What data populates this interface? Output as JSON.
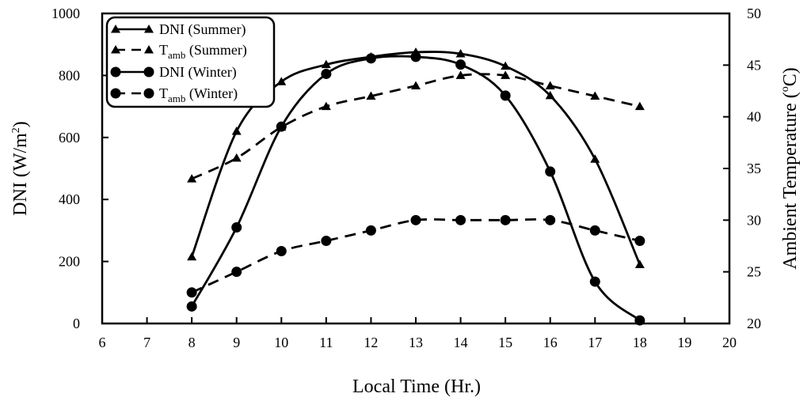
{
  "chart_data": {
    "type": "line",
    "xlabel": "Local Time (Hr.)",
    "ylabel_left": "DNI (W/m",
    "ylabel_left_sup": "2",
    "ylabel_left_close": ")",
    "ylabel_right": "Ambient Temperature (",
    "ylabel_right_degree": "o",
    "ylabel_right_unit": "C)",
    "xlim": [
      6,
      20
    ],
    "ylim_left": [
      0,
      1000
    ],
    "ylim_right": [
      20,
      50
    ],
    "x_ticks": [
      6,
      7,
      8,
      9,
      10,
      11,
      12,
      13,
      14,
      15,
      16,
      17,
      18,
      19,
      20
    ],
    "y_left_ticks": [
      0,
      200,
      400,
      600,
      800,
      1000
    ],
    "y_right_ticks": [
      20,
      25,
      30,
      35,
      40,
      45,
      50
    ],
    "grid": false,
    "legend_position": "top-left",
    "series": [
      {
        "name": "DNI (Summer)",
        "legend_main": "DNI (Summer)",
        "legend_sub": "",
        "legend_tail": "",
        "axis": "left",
        "marker": "triangle",
        "dash": "solid",
        "x": [
          8,
          9,
          10,
          11,
          12,
          13,
          14,
          15,
          16,
          17,
          18
        ],
        "values": [
          215,
          620,
          780,
          835,
          860,
          875,
          870,
          830,
          735,
          530,
          190
        ]
      },
      {
        "name": "Tamb (Summer)",
        "legend_main": "T",
        "legend_sub": "amb",
        "legend_tail": " (Summer)",
        "axis": "right",
        "marker": "triangle",
        "dash": "dashed",
        "x": [
          8,
          9,
          10,
          11,
          12,
          13,
          14,
          15,
          16,
          17,
          18
        ],
        "values": [
          34,
          36,
          39,
          41,
          42,
          43,
          44,
          44,
          43,
          42,
          41
        ]
      },
      {
        "name": "DNI (Winter)",
        "legend_main": "DNI (Winter)",
        "legend_sub": "",
        "legend_tail": "",
        "axis": "left",
        "marker": "circle",
        "dash": "solid",
        "x": [
          8,
          9,
          10,
          11,
          12,
          13,
          14,
          15,
          16,
          17,
          18
        ],
        "values": [
          55,
          310,
          635,
          805,
          855,
          860,
          835,
          735,
          490,
          135,
          10
        ]
      },
      {
        "name": "Tamb (Winter)",
        "legend_main": "T",
        "legend_sub": "amb",
        "legend_tail": " (Winter)",
        "axis": "right",
        "marker": "circle",
        "dash": "dashed",
        "x": [
          8,
          9,
          10,
          11,
          12,
          13,
          14,
          15,
          16,
          17,
          18
        ],
        "values": [
          23,
          25,
          27,
          28,
          29,
          30,
          30,
          30,
          30,
          29,
          28
        ]
      }
    ]
  }
}
